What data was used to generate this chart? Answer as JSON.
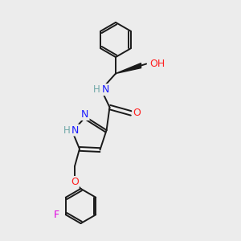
{
  "bg_color": "#ececec",
  "bond_color": "#1a1a1a",
  "bond_width": 1.4,
  "font_size": 8.5,
  "fig_size": [
    3.0,
    3.0
  ],
  "dpi": 100,
  "atom_colors": {
    "N": "#1a1aff",
    "O": "#ff2020",
    "F": "#e000e0",
    "H_light": "#6fa8a8"
  },
  "xlim": [
    0,
    10
  ],
  "ylim": [
    0,
    10
  ]
}
